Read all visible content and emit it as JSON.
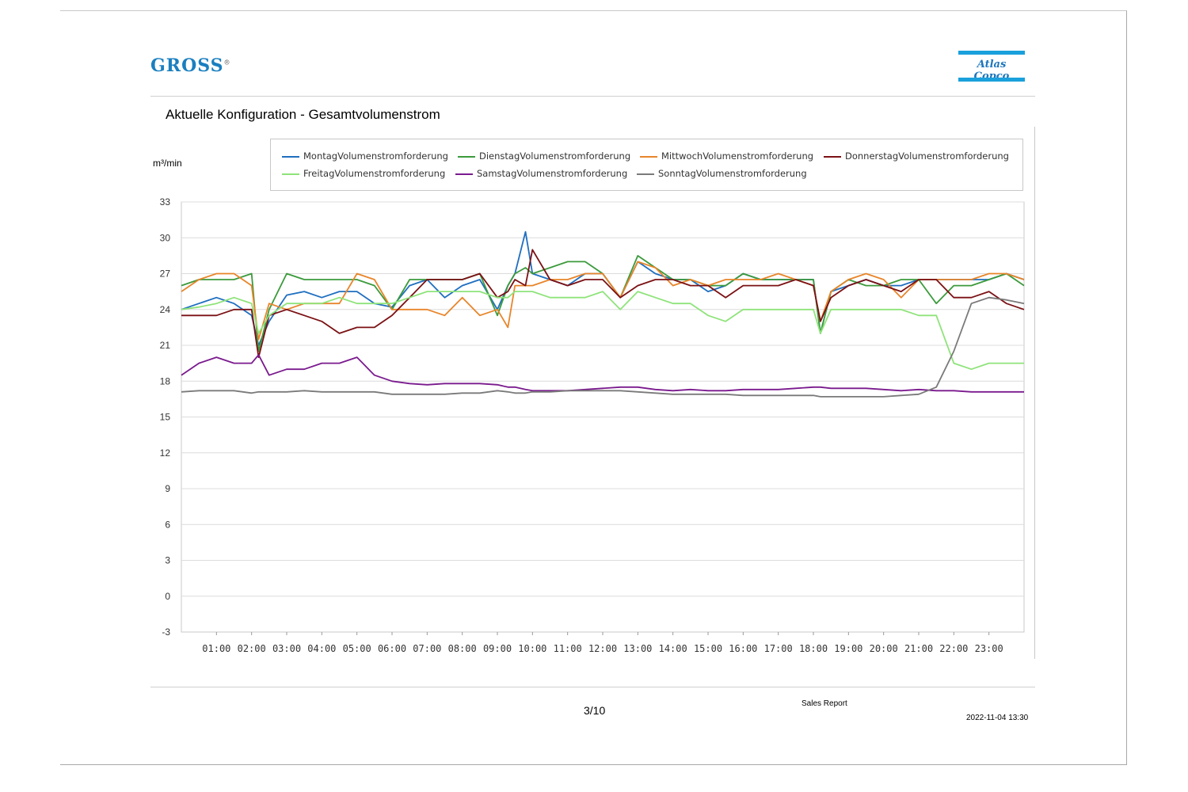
{
  "header": {
    "logo_left": "GROSS",
    "logo_right": "Atlas Copco"
  },
  "colors": {
    "montag": "#1f6fc0",
    "dienstag": "#3c9a3c",
    "mittwoch": "#e8852a",
    "donnerstag": "#7b1114",
    "freitag": "#8fe37a",
    "samstag": "#7a1a8e",
    "sonntag": "#7a7a7a"
  },
  "chart_data": {
    "type": "line",
    "title": "Aktuelle Konfiguration - Gesamtvolumenstrom",
    "ylabel": "m³/min",
    "ylim": [
      -3,
      33
    ],
    "yticks": [
      "33",
      "30",
      "27",
      "24",
      "21",
      "18",
      "15",
      "12",
      "9",
      "6",
      "3",
      "0",
      "-3"
    ],
    "xlim": [
      0,
      24
    ],
    "xtick_labels": [
      "01:00",
      "02:00",
      "03:00",
      "04:00",
      "05:00",
      "06:00",
      "07:00",
      "08:00",
      "09:00",
      "10:00",
      "11:00",
      "12:00",
      "13:00",
      "14:00",
      "15:00",
      "16:00",
      "17:00",
      "18:00",
      "19:00",
      "20:00",
      "21:00",
      "22:00",
      "23:00"
    ],
    "grid": "horizontal",
    "legend_position": "top",
    "x": [
      0,
      0.5,
      1,
      1.5,
      2,
      2.2,
      2.5,
      3,
      3.5,
      4,
      4.5,
      5,
      5.5,
      6,
      6.5,
      7,
      7.5,
      8,
      8.5,
      9,
      9.3,
      9.5,
      9.8,
      10,
      10.5,
      11,
      11.5,
      12,
      12.5,
      13,
      13.5,
      14,
      14.5,
      15,
      15.5,
      16,
      16.5,
      17,
      17.5,
      18,
      18.2,
      18.5,
      19,
      19.5,
      20,
      20.5,
      21,
      21.5,
      22,
      22.5,
      23,
      23.5,
      24
    ],
    "series": [
      {
        "name": "MontagVolumenstromforderung",
        "color_key": "montag",
        "values": [
          24,
          24.5,
          25,
          24.5,
          23.5,
          21,
          23,
          25.2,
          25.5,
          25,
          25.5,
          25.5,
          24.5,
          24.2,
          26,
          26.5,
          25,
          26,
          26.5,
          24,
          26,
          27,
          30.5,
          27,
          26.5,
          26,
          27,
          27,
          25,
          28,
          27,
          26.5,
          26.5,
          25.5,
          26,
          27,
          26.5,
          26.5,
          26.5,
          26.5,
          22,
          25.5,
          26,
          26.5,
          26,
          26,
          26.5,
          26.5,
          26.5,
          26.5,
          26.5,
          27,
          26.5
        ]
      },
      {
        "name": "DienstagVolumenstromforderung",
        "color_key": "dienstag",
        "values": [
          26,
          26.5,
          26.5,
          26.5,
          27,
          20.5,
          24,
          27,
          26.5,
          26.5,
          26.5,
          26.5,
          26,
          24,
          26.5,
          26.5,
          26.5,
          26.5,
          27,
          23.5,
          26,
          27,
          27.5,
          27,
          27.5,
          28,
          28,
          27,
          25,
          28.5,
          27.5,
          26.5,
          26.5,
          26,
          26,
          27,
          26.5,
          26.5,
          26.5,
          26.5,
          22,
          25.5,
          26.5,
          26,
          26,
          26.5,
          26.5,
          24.5,
          26,
          26,
          26.5,
          27,
          26
        ]
      },
      {
        "name": "MittwochVolumenstromforderung",
        "color_key": "mittwoch",
        "values": [
          25.5,
          26.5,
          27,
          27,
          26,
          21.5,
          24.5,
          24,
          24.5,
          24.5,
          24.5,
          27,
          26.5,
          24,
          24,
          24,
          23.5,
          25,
          23.5,
          24,
          22.5,
          26,
          26,
          26,
          26.5,
          26.5,
          27,
          27,
          25,
          28,
          27.5,
          26,
          26.5,
          26,
          26.5,
          26.5,
          26.5,
          27,
          26.5,
          26,
          23,
          25.5,
          26.5,
          27,
          26.5,
          25,
          26.5,
          26.5,
          26.5,
          26.5,
          27,
          27,
          26.5
        ]
      },
      {
        "name": "DonnerstagVolumenstromforderung",
        "color_key": "donnerstag",
        "values": [
          23.5,
          23.5,
          23.5,
          24,
          24,
          20,
          23.5,
          24,
          23.5,
          23,
          22,
          22.5,
          22.5,
          23.5,
          25,
          26.5,
          26.5,
          26.5,
          27,
          25,
          25.5,
          26.5,
          26,
          29,
          26.5,
          26,
          26.5,
          26.5,
          25,
          26,
          26.5,
          26.5,
          26,
          26,
          25,
          26,
          26,
          26,
          26.5,
          26,
          23,
          25,
          26,
          26.5,
          26,
          25.5,
          26.5,
          26.5,
          25,
          25,
          25.5,
          24.5,
          24
        ]
      },
      {
        "name": "FreitagVolumenstromforderung",
        "color_key": "freitag",
        "values": [
          24,
          24.2,
          24.5,
          25,
          24.5,
          22,
          23.5,
          24.5,
          24.5,
          24.5,
          25,
          24.5,
          24.5,
          24.5,
          25,
          25.5,
          25.5,
          25.5,
          25.5,
          25,
          25,
          25.5,
          25.5,
          25.5,
          25,
          25,
          25,
          25.5,
          24,
          25.5,
          25,
          24.5,
          24.5,
          23.5,
          23,
          24,
          24,
          24,
          24,
          24,
          22,
          24,
          24,
          24,
          24,
          24,
          23.5,
          23.5,
          19.5,
          19,
          19.5,
          19.5,
          19.5
        ]
      },
      {
        "name": "SamstagVolumenstromforderung",
        "color_key": "samstag",
        "values": [
          18.5,
          19.5,
          20,
          19.5,
          19.5,
          20.2,
          18.5,
          19,
          19,
          19.5,
          19.5,
          20,
          18.5,
          18,
          17.8,
          17.7,
          17.8,
          17.8,
          17.8,
          17.7,
          17.5,
          17.5,
          17.3,
          17.2,
          17.2,
          17.2,
          17.3,
          17.4,
          17.5,
          17.5,
          17.3,
          17.2,
          17.3,
          17.2,
          17.2,
          17.3,
          17.3,
          17.3,
          17.4,
          17.5,
          17.5,
          17.4,
          17.4,
          17.4,
          17.3,
          17.2,
          17.3,
          17.2,
          17.2,
          17.1,
          17.1,
          17.1,
          17.1
        ]
      },
      {
        "name": "SonntagVolumenstromforderung",
        "color_key": "sonntag",
        "values": [
          17.1,
          17.2,
          17.2,
          17.2,
          17,
          17.1,
          17.1,
          17.1,
          17.2,
          17.1,
          17.1,
          17.1,
          17.1,
          16.9,
          16.9,
          16.9,
          16.9,
          17,
          17,
          17.2,
          17.1,
          17,
          17,
          17.1,
          17.1,
          17.2,
          17.2,
          17.2,
          17.2,
          17.1,
          17,
          16.9,
          16.9,
          16.9,
          16.9,
          16.8,
          16.8,
          16.8,
          16.8,
          16.8,
          16.7,
          16.7,
          16.7,
          16.7,
          16.7,
          16.8,
          16.9,
          17.5,
          20.5,
          24.5,
          25,
          24.8,
          24.5
        ]
      }
    ]
  },
  "footer": {
    "page": "3/10",
    "report": "Sales Report",
    "date": "2022-11-04 13:30"
  }
}
